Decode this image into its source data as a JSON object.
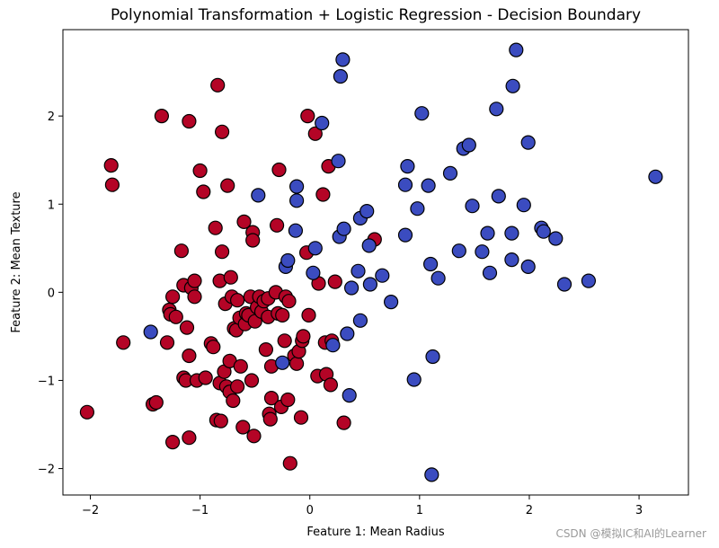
{
  "chart_data": {
    "type": "scatter",
    "title": "Polynomial Transformation + Logistic Regression - Decision Boundary",
    "xlabel": "Feature 1: Mean Radius",
    "ylabel": "Feature 2: Mean Texture",
    "xlim": [
      -2.25,
      3.45
    ],
    "ylim": [
      -2.3,
      2.98
    ],
    "xticks": [
      -2,
      -1,
      0,
      1,
      2,
      3
    ],
    "yticks": [
      -2,
      -1,
      0,
      1,
      2
    ],
    "xtick_labels": [
      "−2",
      "−1",
      "0",
      "1",
      "2",
      "3"
    ],
    "ytick_labels": [
      "−2",
      "−1",
      "0",
      "1",
      "2"
    ],
    "grid": false,
    "colors": {
      "class_red": "#b40426",
      "class_blue": "#3b4cc0",
      "edge": "#000000"
    },
    "series": [
      {
        "class": "red",
        "points": [
          [
            -2.03,
            -1.36
          ],
          [
            -1.81,
            1.44
          ],
          [
            -1.8,
            1.22
          ],
          [
            -1.7,
            -0.57
          ],
          [
            -1.43,
            -1.27
          ],
          [
            -1.4,
            -1.25
          ],
          [
            -1.35,
            2.0
          ],
          [
            -1.3,
            -0.57
          ],
          [
            -1.28,
            -0.2
          ],
          [
            -1.27,
            -0.25
          ],
          [
            -1.25,
            -0.05
          ],
          [
            -1.25,
            -1.7
          ],
          [
            -1.22,
            -0.28
          ],
          [
            -1.17,
            0.47
          ],
          [
            -1.15,
            -0.97
          ],
          [
            -1.15,
            0.08
          ],
          [
            -1.13,
            -1.0
          ],
          [
            -1.12,
            -0.4
          ],
          [
            -1.1,
            -0.72
          ],
          [
            -1.1,
            1.94
          ],
          [
            -1.1,
            -1.65
          ],
          [
            -1.08,
            0.05
          ],
          [
            -1.05,
            -0.05
          ],
          [
            -1.05,
            0.13
          ],
          [
            -1.03,
            -1.0
          ],
          [
            -1.0,
            1.38
          ],
          [
            -0.97,
            1.14
          ],
          [
            -0.95,
            -0.97
          ],
          [
            -0.9,
            -0.58
          ],
          [
            -0.88,
            -0.62
          ],
          [
            -0.86,
            0.73
          ],
          [
            -0.85,
            -1.45
          ],
          [
            -0.84,
            2.35
          ],
          [
            -0.82,
            0.13
          ],
          [
            -0.82,
            -1.03
          ],
          [
            -0.81,
            -1.46
          ],
          [
            -0.8,
            1.82
          ],
          [
            -0.8,
            0.46
          ],
          [
            -0.78,
            -0.9
          ],
          [
            -0.77,
            -0.13
          ],
          [
            -0.76,
            -1.07
          ],
          [
            -0.75,
            1.21
          ],
          [
            -0.73,
            -0.78
          ],
          [
            -0.73,
            -1.13
          ],
          [
            -0.72,
            0.17
          ],
          [
            -0.71,
            -0.05
          ],
          [
            -0.7,
            -1.23
          ],
          [
            -0.69,
            -0.41
          ],
          [
            -0.67,
            -0.43
          ],
          [
            -0.66,
            -0.09
          ],
          [
            -0.66,
            -1.07
          ],
          [
            -0.64,
            -0.29
          ],
          [
            -0.63,
            -0.84
          ],
          [
            -0.61,
            -1.53
          ],
          [
            -0.6,
            0.8
          ],
          [
            -0.59,
            -0.36
          ],
          [
            -0.58,
            -0.24
          ],
          [
            -0.56,
            -0.26
          ],
          [
            -0.54,
            -0.05
          ],
          [
            -0.53,
            -1.0
          ],
          [
            -0.52,
            0.68
          ],
          [
            -0.52,
            0.59
          ],
          [
            -0.51,
            -1.63
          ],
          [
            -0.5,
            -0.33
          ],
          [
            -0.48,
            -0.17
          ],
          [
            -0.46,
            -0.05
          ],
          [
            -0.44,
            -0.22
          ],
          [
            -0.42,
            -0.1
          ],
          [
            -0.4,
            -0.65
          ],
          [
            -0.38,
            -0.07
          ],
          [
            -0.38,
            -0.28
          ],
          [
            -0.37,
            -1.38
          ],
          [
            -0.36,
            -1.44
          ],
          [
            -0.35,
            -1.2
          ],
          [
            -0.35,
            -0.84
          ],
          [
            -0.31,
            0.0
          ],
          [
            -0.3,
            0.76
          ],
          [
            -0.29,
            -0.24
          ],
          [
            -0.28,
            1.39
          ],
          [
            -0.26,
            -1.3
          ],
          [
            -0.25,
            -0.26
          ],
          [
            -0.23,
            -0.55
          ],
          [
            -0.22,
            -0.05
          ],
          [
            -0.2,
            -1.22
          ],
          [
            -0.19,
            -0.1
          ],
          [
            -0.18,
            -1.94
          ],
          [
            -0.14,
            -0.72
          ],
          [
            -0.12,
            -0.81
          ],
          [
            -0.1,
            -0.67
          ],
          [
            -0.08,
            -1.42
          ],
          [
            -0.07,
            -0.55
          ],
          [
            -0.06,
            -0.5
          ],
          [
            -0.03,
            0.45
          ],
          [
            -0.02,
            2.0
          ],
          [
            -0.01,
            -0.26
          ],
          [
            0.05,
            1.8
          ],
          [
            0.07,
            -0.95
          ],
          [
            0.08,
            0.1
          ],
          [
            0.12,
            1.11
          ],
          [
            0.14,
            -0.57
          ],
          [
            0.15,
            -0.93
          ],
          [
            0.17,
            1.43
          ],
          [
            0.19,
            -1.05
          ],
          [
            0.2,
            -0.55
          ],
          [
            0.23,
            0.12
          ],
          [
            0.31,
            -1.48
          ],
          [
            0.59,
            0.6
          ]
        ]
      },
      {
        "class": "blue",
        "points": [
          [
            -1.45,
            -0.45
          ],
          [
            -0.47,
            1.1
          ],
          [
            -0.25,
            -0.8
          ],
          [
            -0.22,
            0.29
          ],
          [
            -0.2,
            0.36
          ],
          [
            -0.13,
            0.7
          ],
          [
            -0.12,
            1.2
          ],
          [
            -0.12,
            1.04
          ],
          [
            0.03,
            0.22
          ],
          [
            0.05,
            0.5
          ],
          [
            0.11,
            1.92
          ],
          [
            0.21,
            -0.6
          ],
          [
            0.26,
            1.49
          ],
          [
            0.27,
            0.63
          ],
          [
            0.28,
            2.45
          ],
          [
            0.3,
            2.64
          ],
          [
            0.31,
            0.72
          ],
          [
            0.34,
            -0.47
          ],
          [
            0.36,
            -1.17
          ],
          [
            0.38,
            0.05
          ],
          [
            0.44,
            0.24
          ],
          [
            0.46,
            -0.32
          ],
          [
            0.46,
            0.84
          ],
          [
            0.52,
            0.92
          ],
          [
            0.54,
            0.53
          ],
          [
            0.55,
            0.09
          ],
          [
            0.66,
            0.19
          ],
          [
            0.74,
            -0.11
          ],
          [
            0.87,
            1.22
          ],
          [
            0.87,
            0.65
          ],
          [
            0.89,
            1.43
          ],
          [
            0.95,
            -0.99
          ],
          [
            0.98,
            0.95
          ],
          [
            1.02,
            2.03
          ],
          [
            1.08,
            1.21
          ],
          [
            1.1,
            0.32
          ],
          [
            1.11,
            -2.07
          ],
          [
            1.12,
            -0.73
          ],
          [
            1.17,
            0.16
          ],
          [
            1.28,
            1.35
          ],
          [
            1.36,
            0.47
          ],
          [
            1.4,
            1.63
          ],
          [
            1.45,
            1.67
          ],
          [
            1.48,
            0.98
          ],
          [
            1.57,
            0.46
          ],
          [
            1.62,
            0.67
          ],
          [
            1.64,
            0.22
          ],
          [
            1.7,
            2.08
          ],
          [
            1.72,
            1.09
          ],
          [
            1.84,
            0.37
          ],
          [
            1.84,
            0.67
          ],
          [
            1.85,
            2.34
          ],
          [
            1.88,
            2.75
          ],
          [
            1.95,
            0.99
          ],
          [
            1.99,
            0.29
          ],
          [
            1.99,
            1.7
          ],
          [
            2.11,
            0.73
          ],
          [
            2.13,
            0.69
          ],
          [
            2.24,
            0.61
          ],
          [
            2.32,
            0.09
          ],
          [
            2.54,
            0.13
          ],
          [
            3.15,
            1.31
          ]
        ]
      }
    ]
  },
  "watermark": "CSDN @模拟IC和AI的Learner"
}
